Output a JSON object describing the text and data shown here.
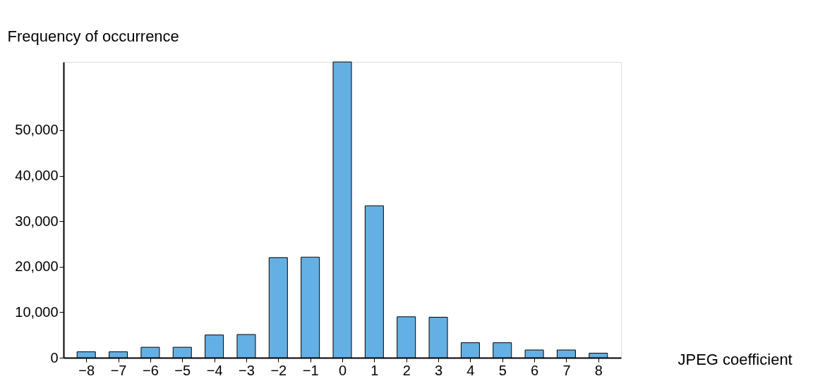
{
  "chart_data": {
    "type": "bar",
    "xlabel": "JPEG coefficient",
    "ylabel": "Frequency of occurrence",
    "categories": [
      "−8",
      "−7",
      "−6",
      "−5",
      "−4",
      "−3",
      "−2",
      "−1",
      "0",
      "1",
      "2",
      "3",
      "4",
      "5",
      "6",
      "7",
      "8"
    ],
    "values": [
      1300,
      1300,
      2300,
      2300,
      5000,
      5100,
      22000,
      22100,
      65000,
      33400,
      9000,
      8900,
      3300,
      3300,
      1700,
      1700,
      1000
    ],
    "color": "#64b0e4",
    "ylim": [
      0,
      65000
    ],
    "yticks": [
      0,
      {
        "value": 10000,
        "label": "10,000"
      },
      {
        "value": 20000,
        "label": "20,000"
      },
      {
        "value": 30000,
        "label": "30,000"
      },
      {
        "value": 40000,
        "label": "40,000"
      },
      {
        "value": 50000,
        "label": "50,000"
      }
    ],
    "grid": false
  }
}
